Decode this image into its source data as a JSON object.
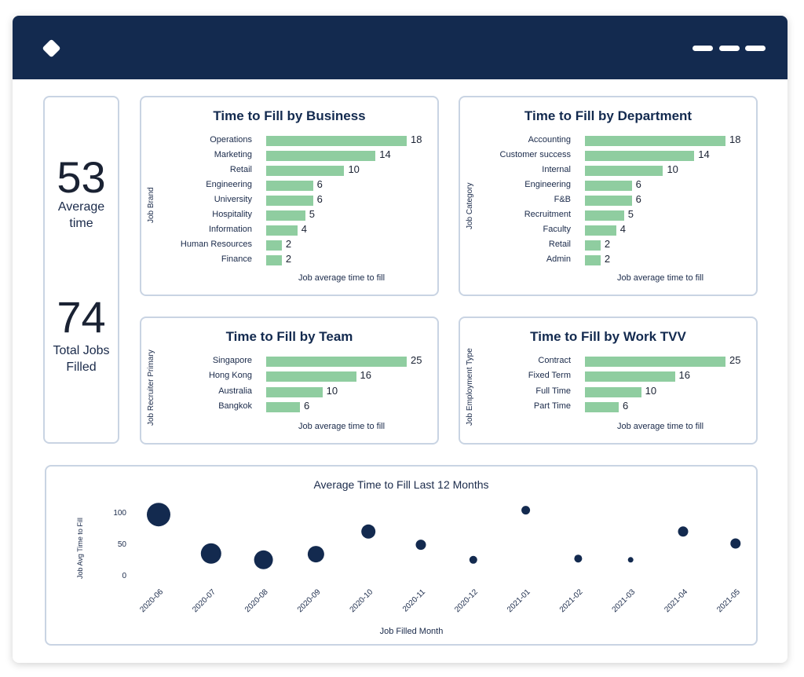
{
  "kpi": {
    "avg_value": "53",
    "avg_label_1": "Average",
    "avg_label_2": "time",
    "total_value": "74",
    "total_label_1": "Total Jobs",
    "total_label_2": "Filled"
  },
  "colors": {
    "header": "#132a4f",
    "bar": "#8fcda0",
    "bubble": "#132a4f",
    "border": "#c9d4e3"
  },
  "icons": {
    "logo": "diamond-logo-icon",
    "menu": "menu-dashes-icon"
  },
  "chart_data": [
    {
      "type": "bar",
      "orientation": "horizontal",
      "title": "Time to Fill by Business",
      "ylabel": "Job Brand",
      "xlabel": "Job average time to fill",
      "categories": [
        "Operations",
        "Marketing",
        "Retail",
        "Engineering",
        "University",
        "Hospitality",
        "Information",
        "Human Resources",
        "Finance"
      ],
      "values": [
        18,
        14,
        10,
        6,
        6,
        5,
        4,
        2,
        2
      ]
    },
    {
      "type": "bar",
      "orientation": "horizontal",
      "title": "Time to Fill by Department",
      "ylabel": "Job Category",
      "xlabel": "Job average time to fill",
      "categories": [
        "Accounting",
        "Customer success",
        "Internal",
        "Engineering",
        "F&B",
        "Recruitment",
        "Faculty",
        "Retail",
        "Admin"
      ],
      "values": [
        18,
        14,
        10,
        6,
        6,
        5,
        4,
        2,
        2
      ]
    },
    {
      "type": "bar",
      "orientation": "horizontal",
      "title": "Time to Fill by Team",
      "ylabel": "Job Recruiter Primary",
      "xlabel": "Job average time to fill",
      "categories": [
        "Singapore",
        "Hong Kong",
        "Australia",
        "Bangkok"
      ],
      "values": [
        25,
        16,
        10,
        6
      ]
    },
    {
      "type": "bar",
      "orientation": "horizontal",
      "title": "Time to Fill by Work TVV",
      "ylabel": "Job Employment Type",
      "xlabel": "Job average time to fill",
      "categories": [
        "Contract",
        "Fixed Term",
        "Full Time",
        "Part Time"
      ],
      "values": [
        25,
        16,
        10,
        6
      ]
    },
    {
      "type": "scatter",
      "title": "Average Time to Fill Last 12 Months",
      "xlabel": "Job Filled Month",
      "ylabel": "Job Avg Time to Fill",
      "ylim": [
        0,
        120
      ],
      "yticks": [
        0,
        50,
        100
      ],
      "x": [
        "2020-06",
        "2020-07",
        "2020-08",
        "2020-09",
        "2020-10",
        "2020-11",
        "2020-12",
        "2021-01",
        "2021-02",
        "2021-03",
        "2021-04",
        "2021-05"
      ],
      "y": [
        96,
        34,
        24,
        33,
        69,
        48,
        24,
        103,
        26,
        24,
        69,
        50
      ],
      "size": [
        15,
        13,
        12,
        10.5,
        9,
        6.5,
        5,
        5.5,
        5,
        3.5,
        6.5,
        6.5
      ]
    }
  ]
}
